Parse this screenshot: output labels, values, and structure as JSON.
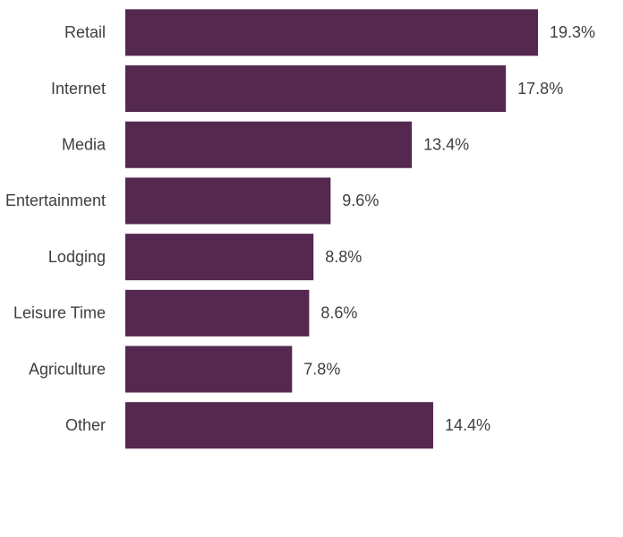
{
  "chart_data": {
    "type": "bar",
    "orientation": "horizontal",
    "categories": [
      "Retail",
      "Internet",
      "Media",
      "Entertainment",
      "Lodging",
      "Leisure Time",
      "Agriculture",
      "Other"
    ],
    "values": [
      19.3,
      17.8,
      13.4,
      9.6,
      8.8,
      8.6,
      7.8,
      14.4
    ],
    "value_labels": [
      "19.3%",
      "17.8%",
      "13.4%",
      "9.6%",
      "8.8%",
      "8.6%",
      "7.8%",
      "14.4%"
    ],
    "color": "#54284f"
  }
}
